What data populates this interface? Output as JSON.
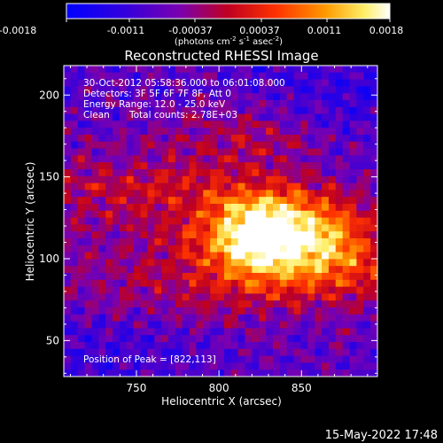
{
  "colorbar": {
    "ticks": [
      "-0.0018",
      "-0.0011",
      "-0.00037",
      "0.00037",
      "0.0011",
      "0.0018"
    ],
    "unit_main": "(photons cm",
    "unit_exp1": "-2",
    "unit_mid1": " s",
    "unit_exp2": "-1",
    "unit_mid2": " asec",
    "unit_exp3": "-2",
    "unit_end": ")"
  },
  "annotations": {
    "time_range": "30-Oct-2012 05:58:36.000 to 06:01:08.000",
    "detectors": "Detectors: 3F 5F 6F 7F 8F, Att 0",
    "energy_range": "Energy Range: 12.0 - 25.0 keV",
    "method": "Clean",
    "total_counts": "Total counts: 2.78E+03",
    "peak": "Position of Peak = [822,113]"
  },
  "footer": {
    "date": "15-May-2022 17:48"
  },
  "chart_data": {
    "type": "heatmap",
    "title": "Reconstructed RHESSI Image",
    "xlabel": "Heliocentric X (arcsec)",
    "ylabel": "Heliocentric Y (arcsec)",
    "xlim": [
      706,
      896
    ],
    "ylim": [
      28,
      218
    ],
    "x_ticks": [
      750,
      800,
      850
    ],
    "y_ticks": [
      50,
      100,
      150,
      200
    ],
    "colorbar_range": [
      -0.0018,
      0.0018
    ],
    "colormap": "RHESSI blue-purple-red-yellow-white",
    "peak": [
      822,
      113
    ]
  }
}
